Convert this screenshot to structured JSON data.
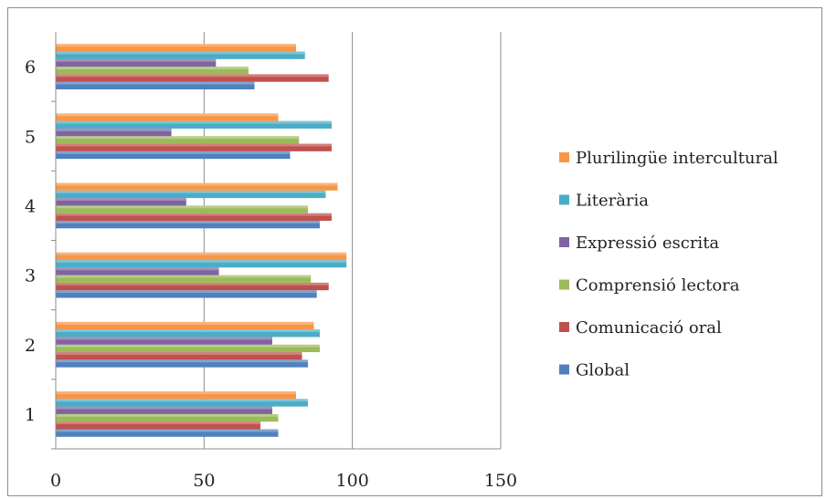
{
  "chart_data": {
    "type": "bar",
    "orientation": "horizontal",
    "categories": [
      "1",
      "2",
      "3",
      "4",
      "5",
      "6"
    ],
    "series": [
      {
        "name": "Global",
        "color": "#4f81bd",
        "values": [
          75,
          85,
          88,
          89,
          79,
          67
        ]
      },
      {
        "name": "Comunicació oral",
        "color": "#c0504d",
        "values": [
          69,
          83,
          92,
          93,
          93,
          92
        ]
      },
      {
        "name": "Comprensió lectora",
        "color": "#9bbb59",
        "values": [
          75,
          89,
          86,
          85,
          82,
          65
        ]
      },
      {
        "name": "Expressió escrita",
        "color": "#8064a2",
        "values": [
          73,
          73,
          55,
          44,
          39,
          54
        ]
      },
      {
        "name": "Literària",
        "color": "#4bacc6",
        "values": [
          85,
          89,
          98,
          91,
          93,
          84
        ]
      },
      {
        "name": "Plurilingüe intercultural",
        "color": "#f79646",
        "values": [
          81,
          87,
          98,
          95,
          75,
          81
        ]
      }
    ],
    "xlim": [
      0,
      150
    ],
    "x_ticks": [
      "0",
      "50",
      "100",
      "150"
    ],
    "grid": "vertical",
    "legend_position": "right",
    "legend_order": [
      "Plurilingüe intercultural",
      "Literària",
      "Expressió escrita",
      "Comprensió lectora",
      "Comunicació oral",
      "Global"
    ]
  }
}
